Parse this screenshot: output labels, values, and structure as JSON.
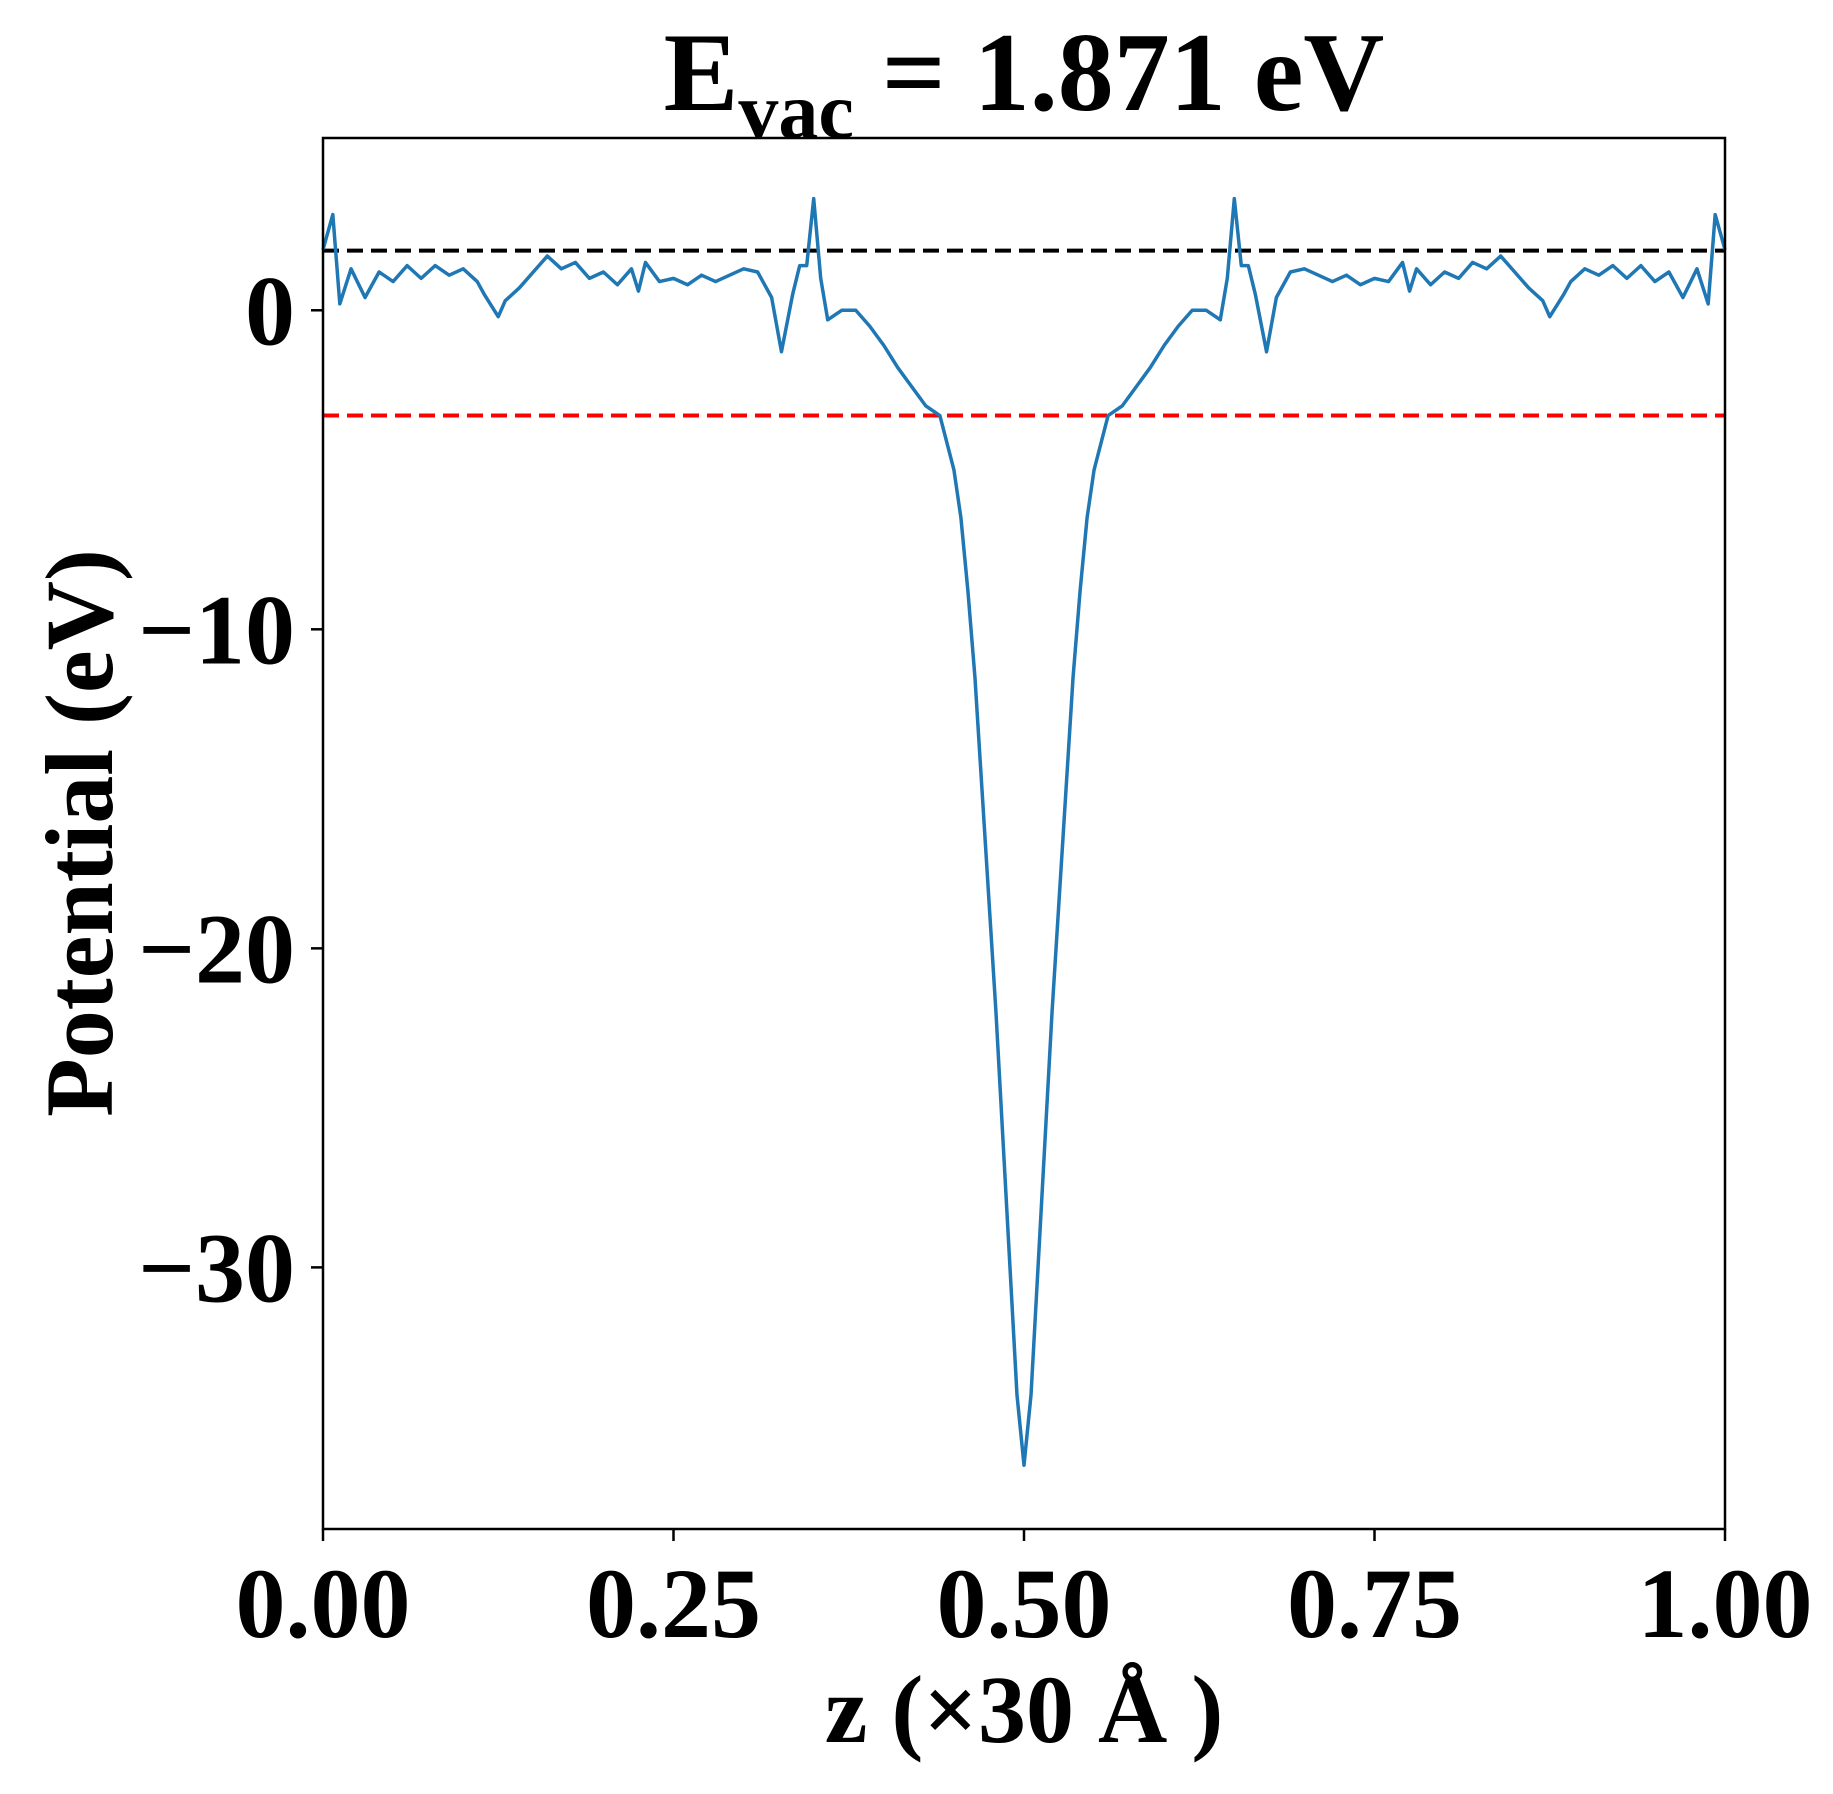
{
  "chart_data": {
    "type": "line",
    "title": {
      "main": "E",
      "sub": "vac",
      "rest": " = 1.871 eV"
    },
    "x_label": "z (×30 Å )",
    "y_label": "Potential (eV)",
    "x": [
      0,
      0.007,
      0.012,
      0.02,
      0.03,
      0.04,
      0.05,
      0.06,
      0.07,
      0.08,
      0.09,
      0.1,
      0.11,
      0.115,
      0.125,
      0.13,
      0.14,
      0.15,
      0.16,
      0.17,
      0.18,
      0.19,
      0.2,
      0.21,
      0.22,
      0.225,
      0.23,
      0.24,
      0.25,
      0.26,
      0.27,
      0.28,
      0.29,
      0.3,
      0.31,
      0.32,
      0.327,
      0.335,
      0.34,
      0.345,
      0.35,
      0.355,
      0.36,
      0.37,
      0.38,
      0.39,
      0.4,
      0.41,
      0.42,
      0.43,
      0.44,
      0.45,
      0.455,
      0.46,
      0.465,
      0.47,
      0.475,
      0.48,
      0.485,
      0.49,
      0.495,
      0.5,
      0.505,
      0.51,
      0.515,
      0.52,
      0.525,
      0.53,
      0.535,
      0.54,
      0.545,
      0.55,
      0.56,
      0.57,
      0.58,
      0.59,
      0.6,
      0.61,
      0.62,
      0.63,
      0.64,
      0.645,
      0.65,
      0.655,
      0.66,
      0.665,
      0.673,
      0.68,
      0.69,
      0.7,
      0.71,
      0.72,
      0.73,
      0.74,
      0.75,
      0.76,
      0.77,
      0.775,
      0.78,
      0.79,
      0.8,
      0.81,
      0.82,
      0.83,
      0.84,
      0.85,
      0.86,
      0.87,
      0.875,
      0.885,
      0.89,
      0.9,
      0.91,
      0.92,
      0.93,
      0.94,
      0.95,
      0.96,
      0.97,
      0.98,
      0.988,
      0.993,
      1.0
    ],
    "series": [
      {
        "color": "#1f77b4",
        "values": [
          1.9,
          3.0,
          0.2,
          1.3,
          0.4,
          1.2,
          0.9,
          1.4,
          1.0,
          1.4,
          1.1,
          1.3,
          0.9,
          0.5,
          -0.2,
          0.3,
          0.7,
          1.2,
          1.7,
          1.3,
          1.5,
          1.0,
          1.2,
          0.8,
          1.3,
          0.6,
          1.5,
          0.9,
          1.0,
          0.8,
          1.1,
          0.9,
          1.1,
          1.3,
          1.2,
          0.4,
          -1.3,
          0.5,
          1.4,
          1.4,
          3.5,
          1.0,
          -0.3,
          0.0,
          0.0,
          -0.5,
          -1.1,
          -1.8,
          -2.4,
          -3.0,
          -3.3,
          -5.0,
          -6.5,
          -8.8,
          -11.5,
          -15,
          -18.5,
          -22,
          -26,
          -30,
          -34,
          -36.2,
          -34,
          -30,
          -26,
          -22,
          -18.5,
          -15,
          -11.5,
          -8.8,
          -6.5,
          -5.0,
          -3.3,
          -3.0,
          -2.4,
          -1.8,
          -1.1,
          -0.5,
          0.0,
          0.0,
          -0.3,
          1.0,
          3.5,
          1.4,
          1.4,
          0.5,
          -1.3,
          0.4,
          1.2,
          1.3,
          1.1,
          0.9,
          1.1,
          0.8,
          1.0,
          0.9,
          1.5,
          0.6,
          1.3,
          0.8,
          1.2,
          1.0,
          1.5,
          1.3,
          1.7,
          1.2,
          0.7,
          0.3,
          -0.2,
          0.5,
          0.9,
          1.3,
          1.1,
          1.4,
          1.0,
          1.4,
          0.9,
          1.2,
          0.4,
          1.3,
          0.2,
          3.0,
          1.9
        ]
      }
    ],
    "hlines": [
      {
        "value": 1.871,
        "color": "#000000"
      },
      {
        "value": -3.3,
        "color": "#ff0000"
      }
    ],
    "xlim": [
      0,
      1
    ],
    "xticks": [
      {
        "value": 0,
        "label": "0.00"
      },
      {
        "value": 0.25,
        "label": "0.25"
      },
      {
        "value": 0.5,
        "label": "0.50"
      },
      {
        "value": 0.75,
        "label": "0.75"
      },
      {
        "value": 1,
        "label": "1.00"
      }
    ],
    "ylim": [
      -38.2,
      5.4
    ],
    "yticks": [
      0,
      {
        "value": -10,
        "label": "−10"
      },
      {
        "value": -20,
        "label": "−20"
      },
      {
        "value": -30,
        "label": "−30"
      }
    ],
    "grid": false
  }
}
